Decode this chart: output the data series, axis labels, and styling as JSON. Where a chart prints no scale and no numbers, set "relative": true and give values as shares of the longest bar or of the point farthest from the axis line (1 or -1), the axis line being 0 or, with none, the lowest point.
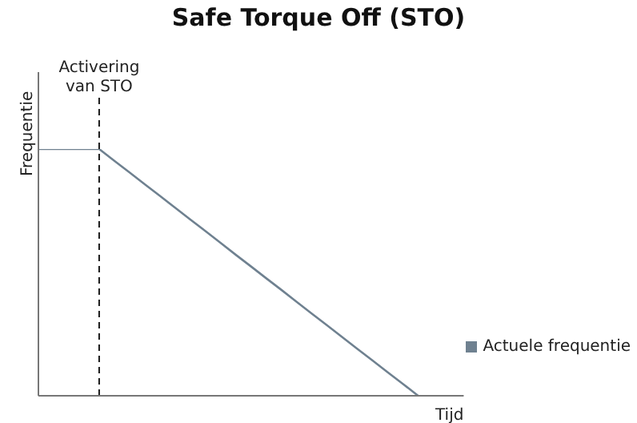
{
  "chart_data": {
    "type": "line",
    "title": "Safe Torque Off (STO)",
    "xlabel": "Tijd",
    "ylabel": "Frequentie",
    "relative": true,
    "categories": [
      null,
      null,
      null,
      null,
      null,
      null,
      null,
      null,
      null,
      null,
      null,
      null,
      null,
      null,
      null,
      null,
      null,
      null,
      null,
      null,
      null,
      null,
      null,
      null,
      null,
      null,
      null,
      null,
      null
    ],
    "series": [
      {
        "name": "Actuele frequentie",
        "color": "#6f8190",
        "values": [
          1,
          1,
          1,
          1,
          1,
          0.952,
          0.905,
          0.857,
          0.81,
          0.762,
          0.714,
          0.667,
          0.619,
          0.571,
          0.524,
          0.476,
          0.429,
          0.381,
          0.333,
          0.286,
          0.238,
          0.19,
          0.143,
          0.095,
          0.048,
          0,
          null,
          null,
          null
        ]
      }
    ],
    "annotations": [
      "Activering van STO"
    ],
    "legend": "right",
    "marker": "none",
    "line_style": "solid",
    "grid": false
  }
}
